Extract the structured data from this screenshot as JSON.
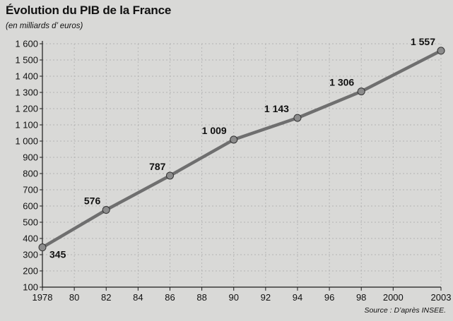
{
  "title": "Évolution du PIB de la France",
  "subtitle": "(en milliards d’ euros)",
  "source": "Source : D’après INSEE.",
  "colors": {
    "background": "#d9d9d7",
    "line": "#6f6f6f",
    "marker": "#8c8c8c",
    "grid": "#b3b3b3",
    "axis": "#1a1a1a"
  },
  "chart_data": {
    "type": "line",
    "title": "Évolution du PIB de la France",
    "subtitle": "(en milliards d’ euros)",
    "xlabel": "",
    "ylabel": "",
    "x": [
      1978,
      1982,
      1986,
      1990,
      1994,
      1998,
      2003
    ],
    "x_tick_values": [
      1978,
      1980,
      1982,
      1984,
      1986,
      1988,
      1990,
      1992,
      1994,
      1996,
      1998,
      2000,
      2003
    ],
    "x_tick_labels": [
      "1978",
      "80",
      "82",
      "84",
      "86",
      "88",
      "90",
      "92",
      "94",
      "96",
      "98",
      "2000",
      "2003"
    ],
    "y_ticks": [
      100,
      200,
      300,
      400,
      500,
      600,
      700,
      800,
      900,
      1000,
      1100,
      1200,
      1300,
      1400,
      1500,
      1600
    ],
    "y_tick_labels": [
      "100",
      "200",
      "300",
      "400",
      "500",
      "600",
      "700",
      "800",
      "900",
      "1 000",
      "1 100",
      "1 200",
      "1 300",
      "1 400",
      "1 500",
      "1 600"
    ],
    "ylim": [
      100,
      1600
    ],
    "grid": true,
    "series": [
      {
        "values": [
          345,
          576,
          787,
          1009,
          1143,
          1306,
          1557
        ],
        "labels": [
          "345",
          "576",
          "787",
          "1 009",
          "1 143",
          "1 306",
          "1 557"
        ]
      }
    ]
  }
}
